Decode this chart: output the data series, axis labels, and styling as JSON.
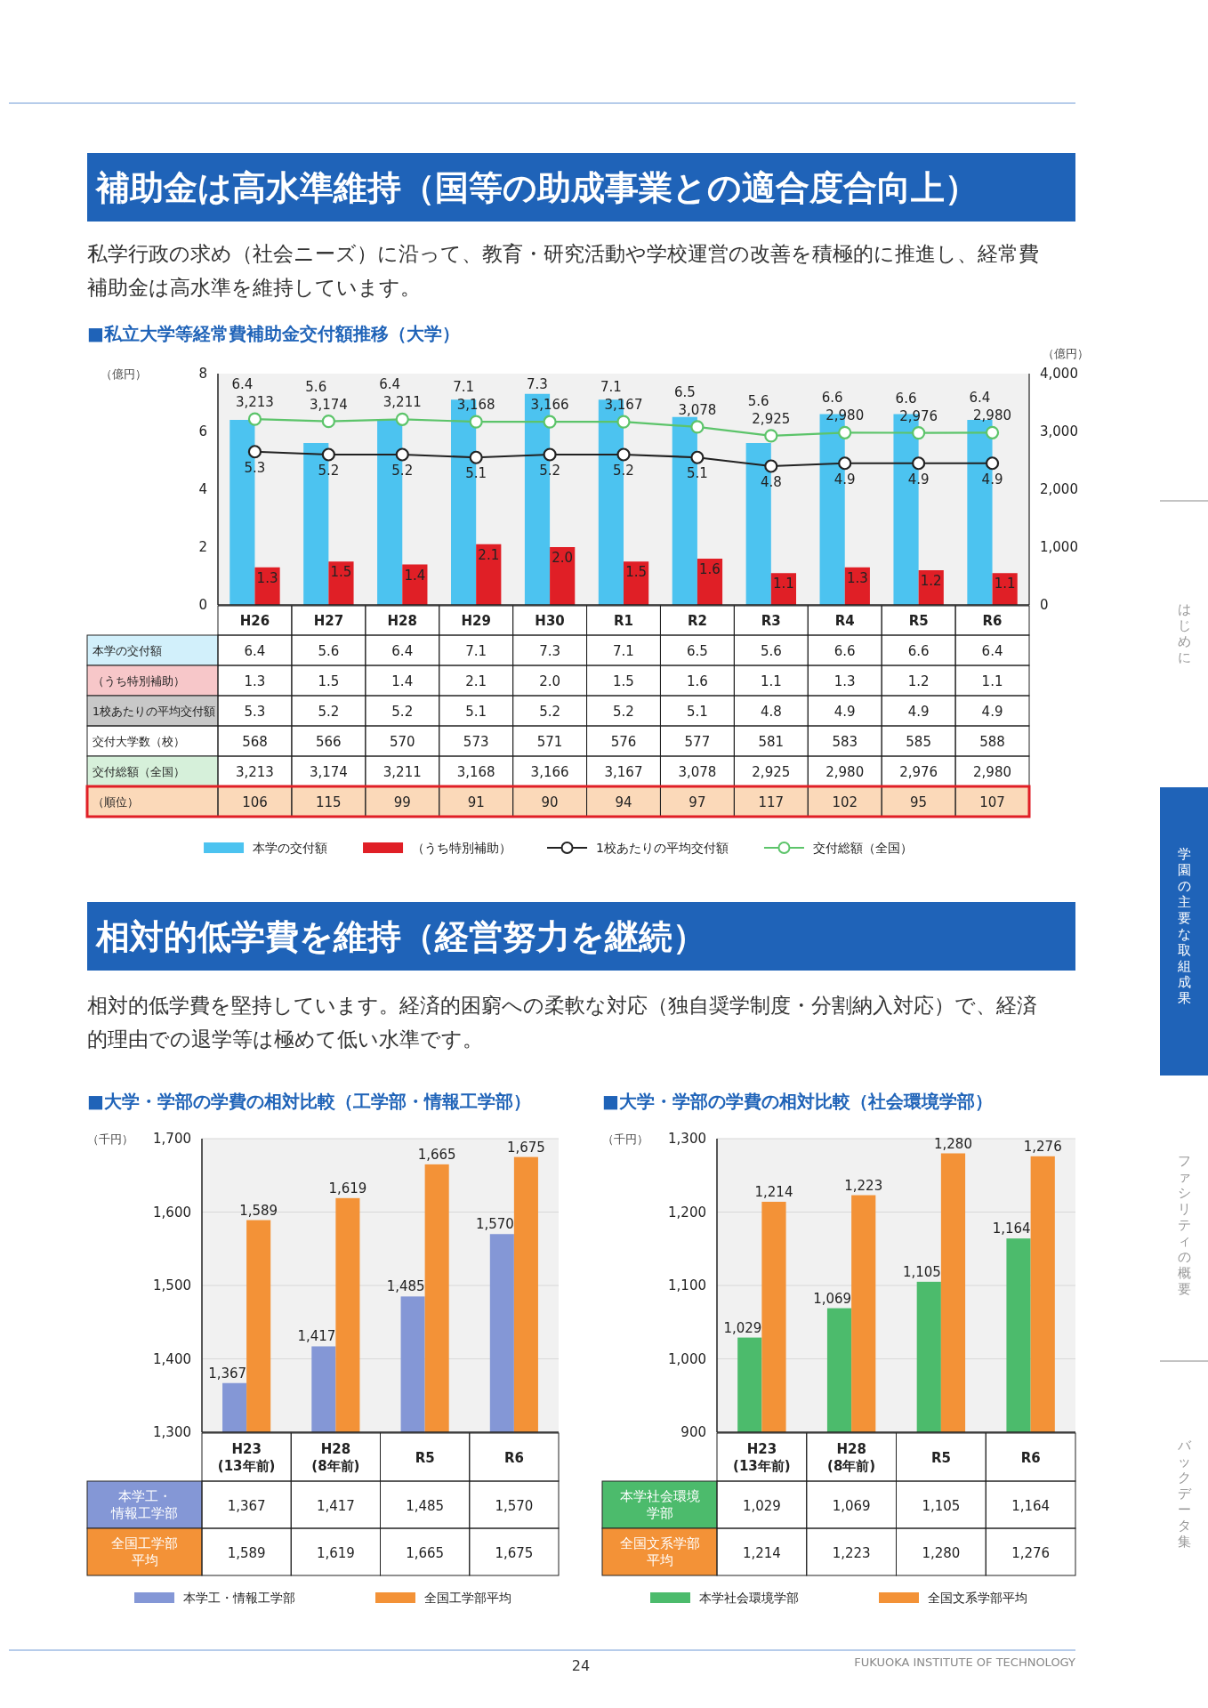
{
  "chart_data": [
    {
      "type": "bar",
      "title": "■私立大学等経常費補助金交付額推移（大学）",
      "ylabel": "（億円）",
      "y2label": "（億円）",
      "categories": [
        "H26",
        "H27",
        "H28",
        "H29",
        "H30",
        "R1",
        "R2",
        "R3",
        "R4",
        "R5",
        "R6"
      ],
      "series": [
        {
          "name": "本学の交付額",
          "type": "bar",
          "color": "#4cc3f0",
          "values": [
            6.4,
            5.6,
            6.4,
            7.1,
            7.3,
            7.1,
            6.5,
            5.6,
            6.6,
            6.6,
            6.4
          ],
          "value_labels": [
            "6.4",
            "5.6",
            "6.4",
            "7.1",
            "7.3",
            "7.1",
            "6.5",
            "5.6",
            "6.6",
            "6.6",
            "6.4"
          ]
        },
        {
          "name": "（うち特別補助）",
          "type": "bar",
          "color": "#e01f26",
          "values": [
            1.3,
            1.5,
            1.4,
            2.1,
            2.0,
            1.5,
            1.6,
            1.1,
            1.3,
            1.2,
            1.1
          ],
          "value_labels": [
            "1.3",
            "1.5",
            "1.4",
            "2.1",
            "2.0",
            "1.5",
            "1.6",
            "1.1",
            "1.3",
            "1.2",
            "1.1"
          ]
        },
        {
          "name": "1校あたりの平均交付額",
          "type": "line",
          "color": "#222222",
          "marker": "circle",
          "values": [
            5.3,
            5.2,
            5.2,
            5.1,
            5.2,
            5.2,
            5.1,
            4.8,
            4.9,
            4.9,
            4.9
          ],
          "value_labels": [
            "5.3",
            "5.2",
            "5.2",
            "5.1",
            "5.2",
            "5.2",
            "5.1",
            "4.8",
            "4.9",
            "4.9",
            "4.9"
          ]
        },
        {
          "name": "交付総額（全国）",
          "type": "line",
          "axis": "y2",
          "color": "#5cc46a",
          "marker": "circle",
          "values": [
            3213,
            3174,
            3211,
            3168,
            3166,
            3167,
            3078,
            2925,
            2980,
            2976,
            2980
          ],
          "value_labels": [
            "3,213",
            "3,174",
            "3,211",
            "3,168",
            "3,166",
            "3,167",
            "3,078",
            "2,925",
            "2,980",
            "2,976",
            "2,980"
          ]
        }
      ],
      "ylim": [
        0,
        8
      ],
      "yticks": [
        0,
        2,
        4,
        6,
        8
      ],
      "y2lim": [
        0,
        4000
      ],
      "y2ticks": [
        0,
        {
          "value": 1000,
          "label": "1,000"
        },
        {
          "value": 2000,
          "label": "2,000"
        },
        {
          "value": 3000,
          "label": "3,000"
        },
        {
          "value": 4000,
          "label": "4,000"
        }
      ],
      "legend": "bottom",
      "annotations": [
        "補助金は高水準維持（国等の助成事業との適合度合向上）",
        "私学行政の求め（社会ニーズ）に沿って、教育・研究活動や学校運営の改善を積極的に推進し、経常費補助金は高水準を維持しています。",
        "はじめに",
        "学園の主要な取組成果",
        "ファシリティの概要",
        "バックデータ集",
        "交付大学数（校）",
        "568",
        "566",
        "570",
        "573",
        "571",
        "576",
        "577",
        "581",
        "583",
        "585",
        "588",
        "（順位）",
        "106",
        "115",
        "99",
        "91",
        "90",
        "94",
        "97",
        "117",
        "102",
        "95",
        "107"
      ]
    },
    {
      "type": "bar",
      "title": "■大学・学部の学費の相対比較（工学部・情報工学部）",
      "ylabel": "（千円）",
      "categories": [
        "H23\n(13年前)",
        "H28\n(8年前)",
        "R5",
        "R6"
      ],
      "series": [
        {
          "name": "本学工・情報工学部",
          "color": "#8497d6",
          "values": [
            1367,
            1417,
            1485,
            1570
          ],
          "value_labels": [
            "1,367",
            "1,417",
            "1,485",
            "1,570"
          ]
        },
        {
          "name": "全国工学部平均",
          "color": "#f39237",
          "values": [
            1589,
            1619,
            1665,
            1675
          ],
          "value_labels": [
            "1,589",
            "1,619",
            "1,665",
            "1,675"
          ]
        }
      ],
      "ylim": [
        1300,
        1700
      ],
      "yticks": [
        {
          "value": 1300,
          "label": "1,300"
        },
        {
          "value": 1400,
          "label": "1,400"
        },
        {
          "value": 1500,
          "label": "1,500"
        },
        {
          "value": 1600,
          "label": "1,600"
        },
        {
          "value": 1700,
          "label": "1,700"
        }
      ],
      "grid": "y",
      "legend": "bottom",
      "annotations": [
        "相対的低学費を維持（経営努力を継続）",
        "相対的低学費を堅持しています。経済的困窮への柔軟な対応（独自奨学制度・分割納入対応）で、経済的理由での退学等は極めて低い水準です。"
      ]
    },
    {
      "type": "bar",
      "title": "■大学・学部の学費の相対比較（社会環境学部）",
      "ylabel": "（千円）",
      "categories": [
        "H23\n(13年前)",
        "H28\n(8年前)",
        "R5",
        "R6"
      ],
      "series": [
        {
          "name": "本学社会環境学部",
          "color": "#4cbb6c",
          "values": [
            1029,
            1069,
            1105,
            1164
          ],
          "value_labels": [
            "1,029",
            "1,069",
            "1,105",
            "1,164"
          ]
        },
        {
          "name": "全国文系学部平均",
          "color": "#f39237",
          "values": [
            1214,
            1223,
            1280,
            1276
          ],
          "value_labels": [
            "1,214",
            "1,223",
            "1,280",
            "1,276"
          ]
        }
      ],
      "ylim": [
        900,
        1300
      ],
      "yticks": [
        900,
        {
          "value": 1000,
          "label": "1,000"
        },
        {
          "value": 1100,
          "label": "1,100"
        },
        {
          "value": 1200,
          "label": "1,200"
        },
        {
          "value": 1300,
          "label": "1,300"
        }
      ],
      "grid": "y",
      "legend": "bottom",
      "annotations": [
        "24",
        "FUKUOKA INSTITUTE OF TECHNOLOGY"
      ]
    }
  ]
}
